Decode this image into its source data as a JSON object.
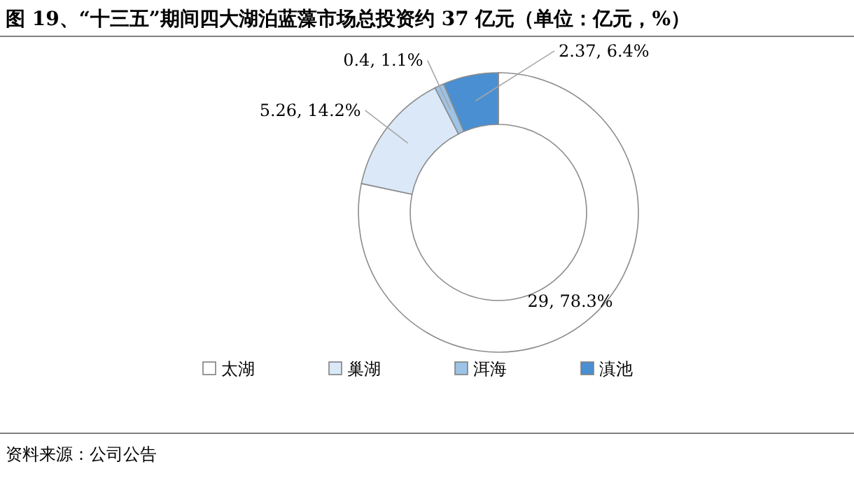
{
  "chart_data": {
    "type": "donut",
    "title": "图 19、“十三五”期间四大湖泊蓝藻市场总投资约 37 亿元（单位：亿元，%）",
    "categories": [
      "太湖",
      "巢湖",
      "洱海",
      "滇池"
    ],
    "values": [
      29,
      5.26,
      0.4,
      2.37
    ],
    "value_labels": [
      "29, 78.3%",
      "5.26, 14.2%",
      "0.4, 1.1%",
      "2.37, 6.4%"
    ],
    "colors": [
      "#ffffff",
      "#dae8f8",
      "#9dc3e6",
      "#4a8fd2"
    ],
    "legend": "bottom",
    "annotations": [
      "资料来源：公司公告"
    ]
  }
}
